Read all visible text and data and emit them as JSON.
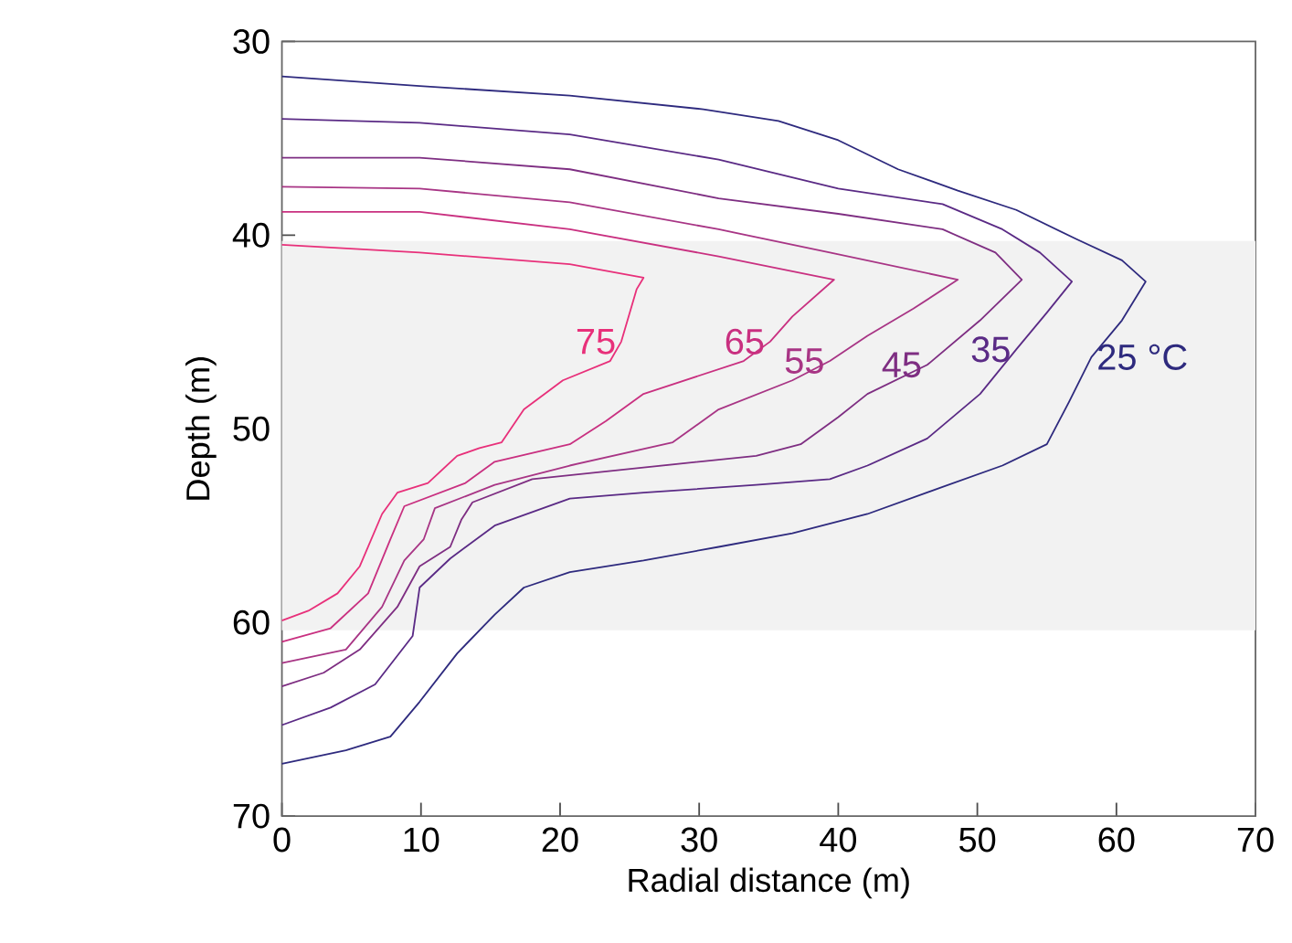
{
  "chart_data": {
    "type": "line",
    "xlabel": "Radial distance (m)",
    "ylabel": "Depth (m)",
    "xlim": [
      0,
      70
    ],
    "ylim": [
      70,
      30
    ],
    "xticks": [
      0,
      10,
      20,
      30,
      40,
      50,
      60,
      70
    ],
    "yticks": [
      30,
      40,
      50,
      60,
      70
    ],
    "grid": false,
    "marker": "none",
    "line_style": "solid",
    "bands": [
      {
        "axis": "y",
        "from": 40.3,
        "to": 60.4,
        "color": "#f2f2f2"
      }
    ],
    "series": [
      {
        "name": "75",
        "color": "#e8307a",
        "x": [
          0,
          9.9,
          20.7,
          26,
          25.5,
          24.4,
          23.6,
          20.2,
          17.4,
          15.8,
          14.2,
          12.6,
          10.5,
          8.3,
          7.2,
          5.6,
          4,
          1.9,
          0
        ],
        "values": [
          40.5,
          40.9,
          41.5,
          42.2,
          42.8,
          45.5,
          46.5,
          47.5,
          49,
          50.7,
          51,
          51.4,
          52.8,
          53.3,
          54.4,
          57.1,
          58.5,
          59.4,
          59.9
        ]
      },
      {
        "name": "65",
        "color": "#c93080",
        "x": [
          0,
          9.9,
          20.7,
          31.4,
          39.7,
          36.7,
          35.1,
          33.2,
          26,
          23.3,
          20.7,
          15.3,
          13.2,
          8.8,
          7.8,
          6.2,
          3.5,
          0
        ],
        "values": [
          38.8,
          38.8,
          39.7,
          41.1,
          42.3,
          44.2,
          45.5,
          46.5,
          48.2,
          49.6,
          50.8,
          51.7,
          52.8,
          54,
          55.7,
          58.5,
          60.3,
          61
        ]
      },
      {
        "name": "55",
        "color": "#a83585",
        "x": [
          0,
          9.9,
          20.7,
          31.4,
          39.4,
          48.6,
          45.4,
          42.1,
          39.4,
          36.7,
          31.4,
          28.1,
          20.7,
          15.3,
          11,
          10.2,
          8.8,
          7.2,
          4.6,
          0
        ],
        "values": [
          37.5,
          37.6,
          38.3,
          39.7,
          40.9,
          42.3,
          43.8,
          45.2,
          46.5,
          47.5,
          49,
          50.7,
          51.9,
          52.9,
          54.1,
          55.7,
          56.8,
          59.2,
          61.4,
          62.1
        ]
      },
      {
        "name": "45",
        "color": "#7e2e82",
        "x": [
          0,
          9.9,
          20.7,
          31.4,
          40,
          47.5,
          51.3,
          53.2,
          50.2,
          46.4,
          42.1,
          40,
          37.3,
          34.1,
          26,
          18,
          13.7,
          12.9,
          12.1,
          9.9,
          8.3,
          5.6,
          3,
          0
        ],
        "values": [
          36,
          36,
          36.6,
          38.1,
          38.9,
          39.7,
          40.9,
          42.3,
          44.4,
          46.7,
          48.2,
          49.4,
          50.8,
          51.4,
          52,
          52.6,
          53.8,
          54.7,
          56.1,
          57.1,
          59.2,
          61.4,
          62.6,
          63.3
        ]
      },
      {
        "name": "35",
        "color": "#5a2a85",
        "x": [
          0,
          9.9,
          20.7,
          31.4,
          40,
          47.5,
          51.8,
          54.5,
          56.8,
          55,
          52.8,
          50.2,
          46.4,
          42.1,
          39.4,
          34.1,
          26,
          20.7,
          15.3,
          12.1,
          9.9,
          9.4,
          6.7,
          3.5,
          0
        ],
        "values": [
          34,
          34.2,
          34.8,
          36.1,
          37.6,
          38.4,
          39.7,
          40.9,
          42.4,
          44,
          45.9,
          48.2,
          50.5,
          51.9,
          52.6,
          52.9,
          53.3,
          53.6,
          55,
          56.7,
          58.2,
          60.7,
          63.2,
          64.4,
          65.3
        ]
      },
      {
        "name": "25 °C",
        "color": "#2e2a7e",
        "x": [
          0,
          9.9,
          20.7,
          30.3,
          35.7,
          40,
          44.3,
          48.6,
          52.8,
          57.1,
          60.4,
          62.1,
          60.4,
          58.2,
          56.6,
          55,
          51.8,
          47.5,
          42.1,
          36.7,
          31.4,
          26,
          20.7,
          17.4,
          15.3,
          12.6,
          9.9,
          7.8,
          4.6,
          0
        ],
        "values": [
          31.8,
          32.3,
          32.8,
          33.5,
          34.1,
          35.1,
          36.6,
          37.7,
          38.7,
          40.2,
          41.3,
          42.4,
          44.4,
          46.3,
          48.6,
          50.8,
          51.9,
          53,
          54.4,
          55.4,
          56.1,
          56.8,
          57.4,
          58.2,
          59.6,
          61.6,
          64.1,
          65.9,
          66.6,
          67.3
        ]
      }
    ]
  }
}
